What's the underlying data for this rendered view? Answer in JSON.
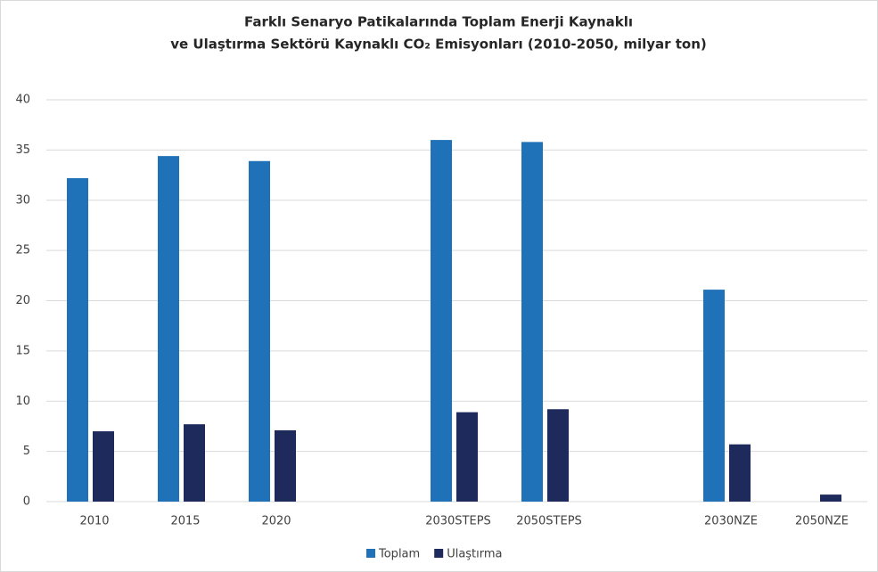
{
  "chart_data": {
    "type": "bar",
    "title": [
      "Farklı Senaryo Patikalarında Toplam Enerji Kaynaklı",
      "ve Ulaştırma Sektörü Kaynaklı CO₂ Emisyonları (2010-2050, milyar ton)"
    ],
    "categories": [
      "2010",
      "2015",
      "2020",
      null,
      "2030STEPS",
      "2050STEPS",
      null,
      "2030NZE",
      "2050NZE"
    ],
    "series": [
      {
        "name": "Toplam",
        "color": "#1f72b8",
        "values": [
          32.2,
          34.4,
          33.9,
          null,
          36.0,
          35.8,
          null,
          21.1,
          0
        ]
      },
      {
        "name": "Ulaştırma",
        "color": "#1f2a5c",
        "values": [
          7.0,
          7.7,
          7.1,
          null,
          8.9,
          9.2,
          null,
          5.7,
          0.7
        ]
      }
    ],
    "ylim": [
      0,
      40
    ],
    "yticks": [
      0,
      5,
      10,
      15,
      20,
      25,
      30,
      35,
      40
    ],
    "grid": true,
    "legend": "bottom"
  }
}
